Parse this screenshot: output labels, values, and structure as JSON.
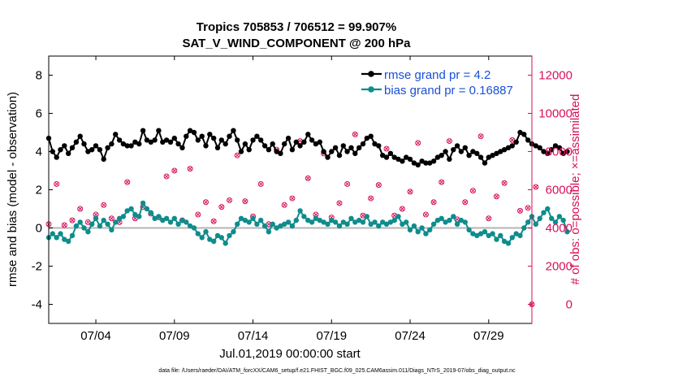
{
  "title_line1": "Tropics 705853 / 706512 = 99.907%",
  "title_line2": "SAT_V_WIND_COMPONENT @ 200 hPa",
  "footnote": "data file: /Users/raeder/DAI/ATM_forcXX/CAM6_setup/f.e21.FHIST_BGC.f09_025.CAM6assim.011/Diags_NTrS_2019-07/obs_diag_output.nc",
  "colors": {
    "rmse": "#000000",
    "bias": "#0f8c8c",
    "obs": "#d6105a",
    "zero_line": "#b4b4b4",
    "legend_text": "#1a4fd6"
  },
  "chart_data": {
    "type": "line",
    "xlabel": "Jul.01,2019 00:00:00 start",
    "ylabel_left": "rmse and bias (model - observation)",
    "ylabel_right": "# of obs: o=possible; ×=assimilated",
    "xlim": [
      1.0,
      31.75
    ],
    "ylim_left": [
      -5,
      9
    ],
    "ylim_right": [
      -1000,
      13000
    ],
    "x_ticks": [
      {
        "value": 4.0,
        "label": "07/04"
      },
      {
        "value": 9.0,
        "label": "07/09"
      },
      {
        "value": 14.0,
        "label": "07/14"
      },
      {
        "value": 19.0,
        "label": "07/19"
      },
      {
        "value": 24.0,
        "label": "07/24"
      },
      {
        "value": 29.0,
        "label": "07/29"
      }
    ],
    "y_ticks_left": [
      {
        "value": -4,
        "label": "-4"
      },
      {
        "value": -2,
        "label": "-2"
      },
      {
        "value": 0,
        "label": "0"
      },
      {
        "value": 2,
        "label": "2"
      },
      {
        "value": 4,
        "label": "4"
      },
      {
        "value": 6,
        "label": "6"
      },
      {
        "value": 8,
        "label": "8"
      }
    ],
    "y_ticks_right": [
      {
        "value": 0,
        "label": "0"
      },
      {
        "value": 2000,
        "label": "2000"
      },
      {
        "value": 4000,
        "label": "4000"
      },
      {
        "value": 6000,
        "label": "6000"
      },
      {
        "value": 8000,
        "label": "8000"
      },
      {
        "value": 10000,
        "label": "10000"
      },
      {
        "value": 12000,
        "label": "12000"
      }
    ],
    "x_start": 1.0,
    "x_step": 0.25,
    "series": [
      {
        "name": "rmse grand pr = 4.2",
        "axis": "left",
        "values": [
          4.7,
          4.0,
          3.7,
          4.1,
          4.3,
          3.9,
          4.2,
          4.5,
          4.8,
          4.4,
          4.0,
          4.1,
          4.3,
          4.1,
          3.6,
          4.2,
          4.4,
          4.9,
          4.6,
          4.4,
          4.3,
          4.3,
          4.5,
          4.4,
          5.1,
          4.6,
          4.5,
          4.6,
          5.1,
          4.5,
          4.6,
          4.5,
          4.7,
          4.4,
          4.2,
          4.8,
          5.1,
          5.0,
          4.6,
          4.8,
          4.3,
          4.9,
          4.7,
          4.2,
          4.6,
          4.4,
          4.8,
          5.1,
          4.6,
          4.0,
          4.4,
          4.1,
          4.6,
          4.8,
          4.6,
          4.3,
          4.1,
          4.4,
          4.0,
          3.9,
          4.4,
          4.7,
          4.1,
          4.5,
          4.3,
          4.5,
          4.9,
          4.6,
          4.4,
          4.5,
          4.0,
          3.7,
          4.0,
          4.2,
          3.8,
          4.3,
          4.0,
          4.2,
          3.9,
          4.2,
          4.4,
          4.7,
          4.8,
          4.4,
          4.3,
          3.8,
          3.7,
          3.9,
          3.7,
          3.6,
          3.5,
          3.7,
          3.6,
          3.4,
          3.3,
          3.5,
          3.4,
          3.4,
          3.5,
          3.7,
          3.8,
          4.0,
          3.6,
          4.1,
          4.3,
          4.0,
          4.2,
          3.8,
          4.0,
          3.9,
          3.7,
          3.4,
          3.7,
          3.8,
          3.9,
          4.0,
          4.1,
          4.2,
          4.3,
          4.5,
          5.0,
          4.9,
          4.6,
          4.4,
          4.3,
          4.2,
          4.0,
          3.9,
          4.1,
          4.3,
          4.2,
          3.9,
          4.0
        ]
      },
      {
        "name": "bias grand pr = 0.16887",
        "axis": "left",
        "values": [
          -0.5,
          -0.3,
          -0.5,
          -0.3,
          -0.6,
          -0.7,
          -0.4,
          0.1,
          0.3,
          0.0,
          -0.2,
          0.2,
          0.5,
          0.1,
          0.4,
          0.2,
          -0.1,
          0.3,
          0.5,
          0.6,
          0.9,
          1.0,
          0.7,
          0.6,
          1.3,
          1.0,
          0.8,
          0.5,
          0.6,
          0.4,
          0.5,
          0.3,
          0.5,
          0.2,
          0.4,
          0.3,
          0.1,
          0.0,
          -0.3,
          -0.5,
          -0.2,
          -0.6,
          -0.7,
          -0.4,
          -0.5,
          -0.8,
          -0.4,
          -0.2,
          0.2,
          0.5,
          0.4,
          0.3,
          0.5,
          0.2,
          0.4,
          0.1,
          -0.2,
          0.2,
          0.0,
          0.1,
          0.2,
          0.3,
          0.1,
          0.4,
          0.9,
          0.6,
          0.4,
          0.3,
          0.5,
          0.4,
          0.3,
          0.2,
          0.4,
          0.3,
          0.1,
          0.3,
          0.2,
          0.5,
          0.3,
          0.4,
          0.3,
          0.6,
          0.2,
          0.3,
          0.1,
          0.3,
          0.2,
          0.3,
          0.4,
          0.6,
          0.2,
          0.3,
          -0.1,
          0.1,
          -0.2,
          0.0,
          -0.3,
          -0.1,
          0.2,
          0.4,
          0.5,
          0.3,
          0.4,
          0.6,
          0.2,
          0.4,
          0.3,
          -0.1,
          -0.3,
          -0.4,
          -0.3,
          -0.2,
          -0.4,
          -0.3,
          -0.6,
          -0.4,
          -0.7,
          -0.8,
          -0.5,
          -0.3,
          -0.4,
          0.0,
          0.3,
          0.6,
          0.2,
          0.5,
          0.8,
          1.0,
          0.5,
          0.3,
          0.6,
          0.4,
          -0.2
        ]
      }
    ],
    "obs_counts": {
      "name": "# of obs",
      "axis": "right",
      "x_step": 0.5,
      "values": [
        4200,
        6300,
        4150,
        4400,
        5000,
        4300,
        4700,
        5200,
        4500,
        4300,
        6400,
        4500,
        5100,
        4750,
        4550,
        6700,
        7000,
        4400,
        7100,
        4700,
        5350,
        4350,
        5100,
        5450,
        7800,
        5400,
        4600,
        6300,
        4200,
        8100,
        5200,
        5550,
        8550,
        6600,
        4700,
        7900,
        4550,
        5300,
        6300,
        8900,
        4650,
        5550,
        6250,
        8150,
        4650,
        5000,
        5900,
        8450,
        4700,
        5350,
        6400,
        8550,
        4450,
        5350,
        5950,
        8800,
        4500,
        5650,
        6350,
        8600,
        4900,
        5050,
        6150
      ]
    }
  }
}
